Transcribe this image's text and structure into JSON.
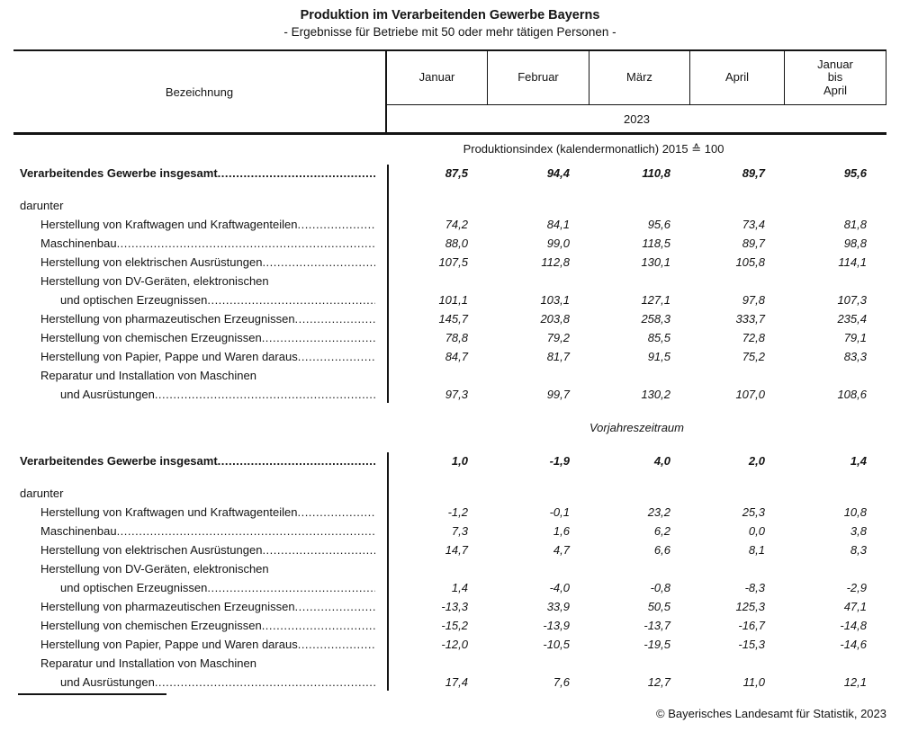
{
  "title": "Produktion im Verarbeitenden Gewerbe Bayerns",
  "subtitle": "- Ergebnisse für Betriebe mit 50 oder mehr tätigen Personen -",
  "header": {
    "label_col": "Bezeichnung",
    "months": [
      "Januar",
      "Februar",
      "März",
      "April"
    ],
    "sum_col_lines": [
      "Januar",
      "bis",
      "April"
    ],
    "year": "2023"
  },
  "sections": [
    {
      "heading": "Produktionsindex (kalendermonatlich) 2015 ≙ 100",
      "rows": [
        {
          "label": "Verarbeitendes Gewerbe insgesamt",
          "indent": 0,
          "bold": true,
          "leader": true,
          "values": [
            "87,5",
            "94,4",
            "110,8",
            "89,7",
            "95,6"
          ]
        },
        {
          "label": "darunter",
          "indent": 0,
          "bold": false,
          "leader": false,
          "gap_above": true,
          "values": null
        },
        {
          "label": "Herstellung von Kraftwagen und Kraftwagenteilen",
          "indent": 1,
          "bold": false,
          "leader": true,
          "values": [
            "74,2",
            "84,1",
            "95,6",
            "73,4",
            "81,8"
          ]
        },
        {
          "label": "Maschinenbau",
          "indent": 1,
          "bold": false,
          "leader": true,
          "values": [
            "88,0",
            "99,0",
            "118,5",
            "89,7",
            "98,8"
          ]
        },
        {
          "label": "Herstellung von elektrischen Ausrüstungen",
          "indent": 1,
          "bold": false,
          "leader": true,
          "values": [
            "107,5",
            "112,8",
            "130,1",
            "105,8",
            "114,1"
          ]
        },
        {
          "label": "Herstellung von DV-Geräten, elektronischen",
          "indent": 1,
          "bold": false,
          "leader": false,
          "values": null
        },
        {
          "label": "und optischen Erzeugnissen",
          "indent": 2,
          "bold": false,
          "leader": true,
          "values": [
            "101,1",
            "103,1",
            "127,1",
            "97,8",
            "107,3"
          ]
        },
        {
          "label": "Herstellung von pharmazeutischen Erzeugnissen",
          "indent": 1,
          "bold": false,
          "leader": true,
          "values": [
            "145,7",
            "203,8",
            "258,3",
            "333,7",
            "235,4"
          ]
        },
        {
          "label": "Herstellung von chemischen Erzeugnissen",
          "indent": 1,
          "bold": false,
          "leader": true,
          "values": [
            "78,8",
            "79,2",
            "85,5",
            "72,8",
            "79,1"
          ]
        },
        {
          "label": "Herstellung von Papier, Pappe und Waren daraus",
          "indent": 1,
          "bold": false,
          "leader": true,
          "values": [
            "84,7",
            "81,7",
            "91,5",
            "75,2",
            "83,3"
          ]
        },
        {
          "label": "Reparatur und Installation von Maschinen",
          "indent": 1,
          "bold": false,
          "leader": false,
          "values": null
        },
        {
          "label": "und Ausrüstungen",
          "indent": 2,
          "bold": false,
          "leader": true,
          "values": [
            "97,3",
            "99,7",
            "130,2",
            "107,0",
            "108,6"
          ]
        }
      ]
    },
    {
      "heading": "Vorjahreszeitraum",
      "rows": [
        {
          "label": "Verarbeitendes Gewerbe insgesamt",
          "indent": 0,
          "bold": true,
          "leader": true,
          "values": [
            "1,0",
            "-1,9",
            "4,0",
            "2,0",
            "1,4"
          ]
        },
        {
          "label": "darunter",
          "indent": 0,
          "bold": false,
          "leader": false,
          "gap_above": true,
          "values": null
        },
        {
          "label": "Herstellung von Kraftwagen und Kraftwagenteilen",
          "indent": 1,
          "bold": false,
          "leader": true,
          "values": [
            "-1,2",
            "-0,1",
            "23,2",
            "25,3",
            "10,8"
          ]
        },
        {
          "label": "Maschinenbau",
          "indent": 1,
          "bold": false,
          "leader": true,
          "values": [
            "7,3",
            "1,6",
            "6,2",
            "0,0",
            "3,8"
          ]
        },
        {
          "label": "Herstellung von elektrischen Ausrüstungen",
          "indent": 1,
          "bold": false,
          "leader": true,
          "values": [
            "14,7",
            "4,7",
            "6,6",
            "8,1",
            "8,3"
          ]
        },
        {
          "label": "Herstellung von DV-Geräten, elektronischen",
          "indent": 1,
          "bold": false,
          "leader": false,
          "values": null
        },
        {
          "label": "und optischen Erzeugnissen",
          "indent": 2,
          "bold": false,
          "leader": true,
          "values": [
            "1,4",
            "-4,0",
            "-0,8",
            "-8,3",
            "-2,9"
          ]
        },
        {
          "label": "Herstellung von pharmazeutischen Erzeugnissen",
          "indent": 1,
          "bold": false,
          "leader": true,
          "values": [
            "-13,3",
            "33,9",
            "50,5",
            "125,3",
            "47,1"
          ]
        },
        {
          "label": "Herstellung von chemischen Erzeugnissen",
          "indent": 1,
          "bold": false,
          "leader": true,
          "values": [
            "-15,2",
            "-13,9",
            "-13,7",
            "-16,7",
            "-14,8"
          ]
        },
        {
          "label": "Herstellung von Papier, Pappe und Waren daraus",
          "indent": 1,
          "bold": false,
          "leader": true,
          "values": [
            "-12,0",
            "-10,5",
            "-19,5",
            "-15,3",
            "-14,6"
          ]
        },
        {
          "label": "Reparatur und Installation von Maschinen",
          "indent": 1,
          "bold": false,
          "leader": false,
          "values": null
        },
        {
          "label": "und Ausrüstungen",
          "indent": 2,
          "bold": false,
          "leader": true,
          "values": [
            "17,4",
            "7,6",
            "12,7",
            "11,0",
            "12,1"
          ]
        }
      ]
    }
  ],
  "footer": "© Bayerisches Landesamt für Statistik, 2023"
}
